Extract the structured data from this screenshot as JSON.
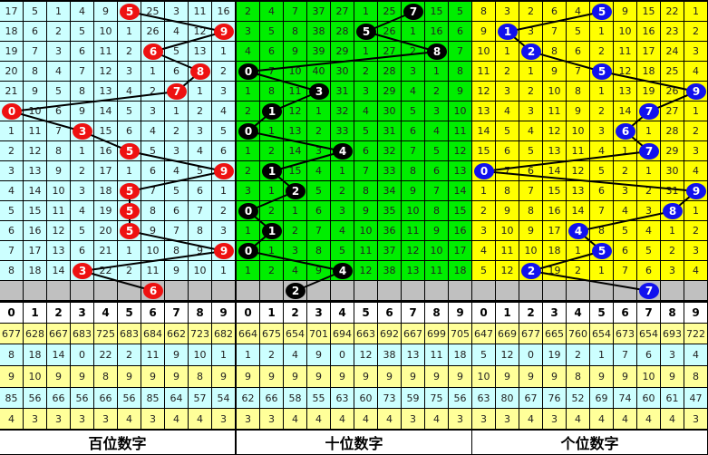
{
  "digits": [
    "0",
    "1",
    "2",
    "3",
    "4",
    "5",
    "6",
    "7",
    "8",
    "9"
  ],
  "panels": [
    {
      "title": "百位数字",
      "bg": "#ccffff",
      "ball_color": "#ee1111",
      "rows": [
        [
          17,
          5,
          1,
          4,
          9,
          5,
          25,
          3,
          11,
          16
        ],
        [
          18,
          6,
          2,
          5,
          10,
          1,
          26,
          4,
          12,
          9
        ],
        [
          19,
          7,
          3,
          6,
          11,
          2,
          6,
          5,
          13,
          1
        ],
        [
          20,
          8,
          4,
          7,
          12,
          3,
          1,
          6,
          8,
          2
        ],
        [
          21,
          9,
          5,
          8,
          13,
          4,
          2,
          7,
          1,
          3
        ],
        [
          0,
          10,
          6,
          9,
          14,
          5,
          3,
          1,
          2,
          4
        ],
        [
          1,
          11,
          7,
          3,
          15,
          6,
          4,
          2,
          3,
          5
        ],
        [
          2,
          12,
          8,
          1,
          16,
          5,
          5,
          3,
          4,
          6
        ],
        [
          3,
          13,
          9,
          2,
          17,
          1,
          6,
          4,
          5,
          9
        ],
        [
          4,
          14,
          10,
          3,
          18,
          5,
          7,
          5,
          6,
          1
        ],
        [
          5,
          15,
          11,
          4,
          19,
          5,
          8,
          6,
          7,
          2
        ],
        [
          6,
          16,
          12,
          5,
          20,
          5,
          9,
          7,
          8,
          3
        ],
        [
          7,
          17,
          13,
          6,
          21,
          1,
          10,
          8,
          9,
          9
        ],
        [
          8,
          18,
          14,
          3,
          22,
          2,
          11,
          9,
          10,
          1
        ]
      ],
      "balls": [
        5,
        9,
        6,
        8,
        7,
        0,
        3,
        5,
        9,
        5,
        5,
        5,
        9,
        3
      ],
      "prediction": 6,
      "stats": [
        [
          677,
          628,
          667,
          683,
          725,
          683,
          684,
          662,
          723,
          682
        ],
        [
          8,
          18,
          14,
          0,
          22,
          2,
          11,
          9,
          10,
          1
        ],
        [
          9,
          10,
          9,
          9,
          8,
          9,
          9,
          9,
          8,
          9
        ],
        [
          85,
          56,
          66,
          56,
          66,
          56,
          85,
          64,
          57,
          54
        ],
        [
          4,
          3,
          3,
          3,
          3,
          4,
          3,
          4,
          4,
          3
        ]
      ]
    },
    {
      "title": "十位数字",
      "bg": "#00ee00",
      "ball_color": "#000000",
      "rows": [
        [
          2,
          4,
          7,
          37,
          27,
          1,
          25,
          7,
          15,
          5
        ],
        [
          3,
          5,
          8,
          38,
          28,
          5,
          26,
          1,
          16,
          6
        ],
        [
          4,
          6,
          9,
          39,
          29,
          1,
          27,
          2,
          8,
          7
        ],
        [
          0,
          7,
          10,
          40,
          30,
          2,
          28,
          3,
          1,
          8
        ],
        [
          1,
          8,
          11,
          3,
          31,
          3,
          29,
          4,
          2,
          9
        ],
        [
          2,
          1,
          12,
          1,
          32,
          4,
          30,
          5,
          3,
          10
        ],
        [
          0,
          1,
          13,
          2,
          33,
          5,
          31,
          6,
          4,
          11
        ],
        [
          1,
          2,
          14,
          3,
          4,
          6,
          32,
          7,
          5,
          12
        ],
        [
          2,
          1,
          15,
          4,
          1,
          7,
          33,
          8,
          6,
          13
        ],
        [
          3,
          1,
          2,
          5,
          2,
          8,
          34,
          9,
          7,
          14
        ],
        [
          0,
          2,
          1,
          6,
          3,
          9,
          35,
          10,
          8,
          15
        ],
        [
          1,
          1,
          2,
          7,
          4,
          10,
          36,
          11,
          9,
          16
        ],
        [
          0,
          1,
          3,
          8,
          5,
          11,
          37,
          12,
          10,
          17
        ],
        [
          1,
          2,
          4,
          9,
          4,
          12,
          38,
          13,
          11,
          18
        ]
      ],
      "balls": [
        7,
        5,
        8,
        0,
        3,
        1,
        0,
        4,
        1,
        2,
        0,
        1,
        0,
        4
      ],
      "prediction": 2,
      "stats": [
        [
          664,
          675,
          654,
          701,
          694,
          663,
          692,
          667,
          699,
          705
        ],
        [
          1,
          2,
          4,
          9,
          0,
          12,
          38,
          13,
          11,
          18
        ],
        [
          9,
          9,
          9,
          9,
          9,
          9,
          9,
          9,
          9,
          9
        ],
        [
          62,
          66,
          58,
          55,
          63,
          60,
          73,
          59,
          75,
          56
        ],
        [
          3,
          3,
          4,
          4,
          4,
          4,
          4,
          3,
          4,
          3
        ]
      ]
    },
    {
      "title": "个位数字",
      "bg": "#ffff00",
      "ball_color": "#1111ee",
      "rows": [
        [
          8,
          3,
          2,
          6,
          4,
          5,
          9,
          15,
          22,
          1
        ],
        [
          9,
          1,
          3,
          7,
          5,
          1,
          10,
          16,
          23,
          2
        ],
        [
          10,
          1,
          2,
          8,
          6,
          2,
          11,
          17,
          24,
          3
        ],
        [
          11,
          2,
          1,
          9,
          7,
          5,
          12,
          18,
          25,
          4
        ],
        [
          12,
          3,
          2,
          10,
          8,
          1,
          13,
          19,
          26,
          9
        ],
        [
          13,
          4,
          3,
          11,
          9,
          2,
          14,
          7,
          27,
          1
        ],
        [
          14,
          5,
          4,
          12,
          10,
          3,
          6,
          1,
          28,
          2
        ],
        [
          15,
          6,
          5,
          13,
          11,
          4,
          1,
          7,
          29,
          3
        ],
        [
          0,
          7,
          6,
          14,
          12,
          5,
          2,
          1,
          30,
          4
        ],
        [
          1,
          8,
          7,
          15,
          13,
          6,
          3,
          2,
          31,
          9
        ],
        [
          2,
          9,
          8,
          16,
          14,
          7,
          4,
          3,
          8,
          1
        ],
        [
          3,
          10,
          9,
          17,
          4,
          8,
          5,
          4,
          1,
          2
        ],
        [
          4,
          11,
          10,
          18,
          1,
          5,
          6,
          5,
          2,
          3
        ],
        [
          5,
          12,
          2,
          19,
          2,
          1,
          7,
          6,
          3,
          4
        ]
      ],
      "balls": [
        5,
        1,
        2,
        5,
        9,
        7,
        6,
        7,
        0,
        9,
        8,
        4,
        5,
        2
      ],
      "prediction": 7,
      "stats": [
        [
          647,
          669,
          677,
          665,
          760,
          654,
          673,
          654,
          693,
          722
        ],
        [
          5,
          12,
          0,
          19,
          2,
          1,
          7,
          6,
          3,
          4
        ],
        [
          10,
          9,
          9,
          9,
          8,
          9,
          9,
          10,
          9,
          8
        ],
        [
          63,
          80,
          67,
          76,
          52,
          69,
          74,
          60,
          61,
          47
        ],
        [
          3,
          3,
          4,
          3,
          4,
          4,
          4,
          4,
          4,
          3
        ]
      ]
    }
  ],
  "stat_row_colors": [
    "#ffff99",
    "#ccffff",
    "#ffff99",
    "#ccffff",
    "#ffff99"
  ],
  "gray": "#c0c0c0"
}
